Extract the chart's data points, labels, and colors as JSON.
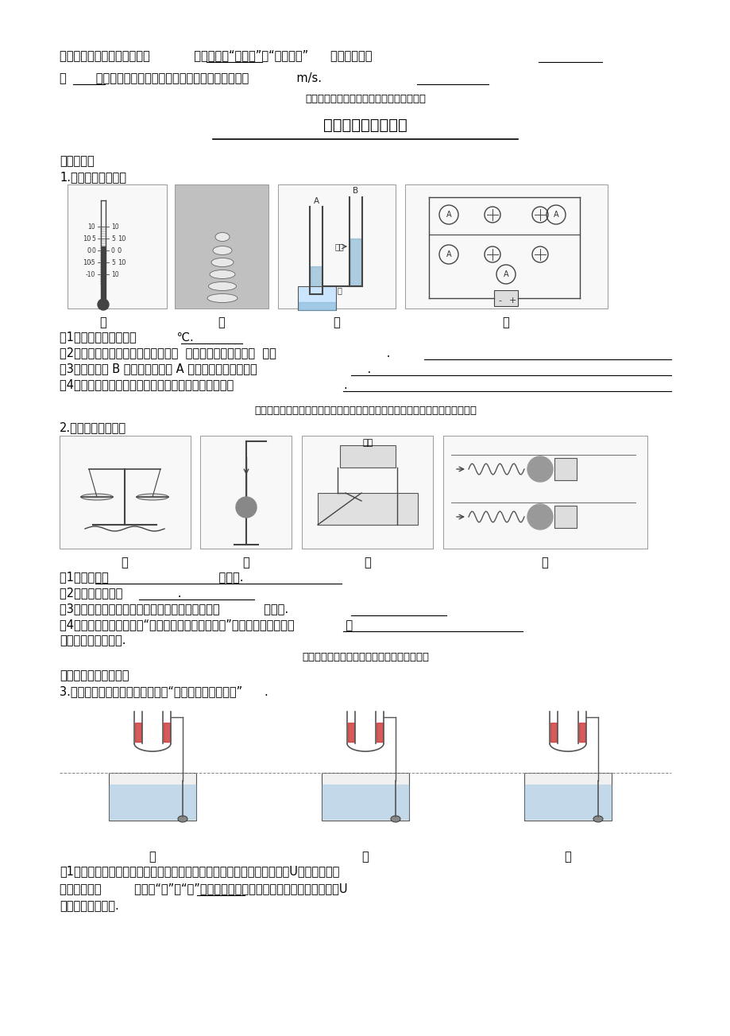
{
  "bg_color": "#ffffff",
  "page_width": 9.2,
  "page_height": 13.03,
  "title": "陕西重点题型猜押题",
  "top_text_line1": "京，飞往夏威夷．太阳能属于            能源（选填“可再生”或“不可再生”      ）；飞机是利",
  "top_text_line2": "用        波和地面传递信息的，该波在真空中的传播速度是             m/s.",
  "top_hint": "（命题点：能源的分类、电磁波及其传播）",
  "section1": "基础小实验",
  "q1_header": "1.按要求完成填空：",
  "q1_labels": [
    "甲",
    "乙",
    "丙",
    "丁"
  ],
  "q1_items": [
    "（1）图甲测得的温度是           ℃.",
    "（2）图乙中下面棋子被快速打出后，  上面的棋子落回原处，  表明                              .",
    "（3）图丙中往 B 管中吹气，看到 A 管中的水面上升，说明                              .",
    "（4）图丁所示，该实验能探究出并联电路电流的特点是                              ."
  ],
  "q1_hint": "（命题点：温度计读数、惯性、流体压强与流速的关系、并联电路电流的特点）",
  "q2_header": "2.按要求完成填空：",
  "q2_labels": [
    "甲",
    "乙",
    "丙",
    "丁"
  ],
  "q2_items": [
    "（1）甲是根据                              制成的.",
    "（2）图乙实验表明               .",
    "（3）如图丙所示，该实验能探究通电导体在磁场中            面运动.",
    "（4）如图丁所示，在探究“弹性势能与什么因素有关”的实验中，通过比较              来"
  ],
  "q2_last_line": "衡量弹性势能的大小.",
  "q2_hint": "（命题点：天平、内能、电与磁、弹性势能）",
  "section2": "教材重点（拓张）实验",
  "q3_header": "3.小李同学利用如图所示装置探究“液体内部压强的特点”      .",
  "q3_labels": [
    "甲",
    "乙",
    "丙"
  ],
  "q3_items": [
    "（1）小李检查压强计的气密性时，用手指不论轻压还是重压橡皮膜，发现U形管两边液柱",
    "的高度差变化         （选填“大”或“小”），表明其气密性差．小李调节好压强计后，U",
    "形管两边液面相平."
  ],
  "underline_color": "#000000",
  "font_color": "#000000"
}
